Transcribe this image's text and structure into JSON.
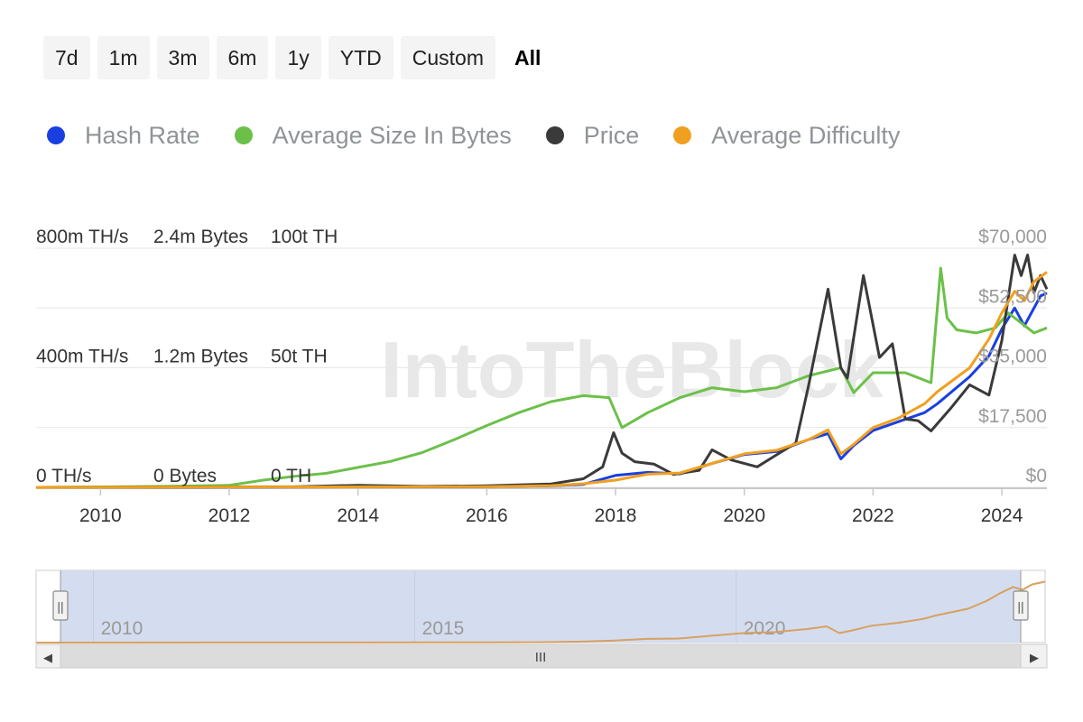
{
  "range_buttons": [
    {
      "label": "7d",
      "active": false
    },
    {
      "label": "1m",
      "active": false
    },
    {
      "label": "3m",
      "active": false
    },
    {
      "label": "6m",
      "active": false
    },
    {
      "label": "1y",
      "active": false
    },
    {
      "label": "YTD",
      "active": false
    },
    {
      "label": "Custom",
      "active": false
    },
    {
      "label": "All",
      "active": true
    }
  ],
  "legend": [
    {
      "label": "Hash Rate",
      "color": "#1a3fe0"
    },
    {
      "label": "Average Size In Bytes",
      "color": "#6cc04a"
    },
    {
      "label": "Price",
      "color": "#3a3a3a"
    },
    {
      "label": "Average Difficulty",
      "color": "#f0a020"
    }
  ],
  "watermark": "IntoTheBlock",
  "chart_data": {
    "type": "line",
    "xlim": [
      2009,
      2024.7
    ],
    "x_ticks": [
      "2010",
      "2012",
      "2014",
      "2016",
      "2018",
      "2020",
      "2022",
      "2024"
    ],
    "left_axes": [
      {
        "name": "Hash Rate",
        "unit": "TH/s",
        "ticks": [
          "0 TH/s",
          "400m TH/s",
          "800m TH/s"
        ],
        "ylim": [
          0,
          800
        ]
      },
      {
        "name": "Average Size In Bytes",
        "unit": "Bytes",
        "ticks": [
          "0 Bytes",
          "1.2m Bytes",
          "2.4m Bytes"
        ],
        "ylim": [
          0,
          2.4
        ]
      },
      {
        "name": "Average Difficulty",
        "unit": "TH",
        "ticks": [
          "0 TH",
          "50t TH",
          "100t TH"
        ],
        "ylim": [
          0,
          100
        ]
      }
    ],
    "right_axis": {
      "name": "Price",
      "ticks": [
        "$0",
        "$17,500",
        "$35,000",
        "$52,500",
        "$70,000"
      ],
      "ylim": [
        0,
        70000
      ]
    },
    "series": [
      {
        "name": "Hash Rate",
        "color": "#1a3fe0",
        "axis": "hash",
        "points": [
          [
            2009,
            0
          ],
          [
            2016,
            2
          ],
          [
            2017,
            5
          ],
          [
            2017.5,
            10
          ],
          [
            2018,
            40
          ],
          [
            2018.5,
            50
          ],
          [
            2019,
            45
          ],
          [
            2019.5,
            80
          ],
          [
            2020,
            110
          ],
          [
            2020.5,
            120
          ],
          [
            2021,
            160
          ],
          [
            2021.3,
            180
          ],
          [
            2021.5,
            95
          ],
          [
            2021.7,
            140
          ],
          [
            2022,
            190
          ],
          [
            2022.4,
            220
          ],
          [
            2022.8,
            250
          ],
          [
            2023,
            280
          ],
          [
            2023.5,
            370
          ],
          [
            2023.8,
            440
          ],
          [
            2024,
            530
          ],
          [
            2024.2,
            600
          ],
          [
            2024.35,
            540
          ],
          [
            2024.5,
            600
          ],
          [
            2024.6,
            640
          ],
          [
            2024.7,
            650
          ]
        ]
      },
      {
        "name": "Average Size In Bytes",
        "color": "#6cc04a",
        "axis": "size",
        "points": [
          [
            2009,
            0
          ],
          [
            2011,
            0.01
          ],
          [
            2012,
            0.02
          ],
          [
            2012.5,
            0.07
          ],
          [
            2013,
            0.11
          ],
          [
            2013.5,
            0.14
          ],
          [
            2014,
            0.2
          ],
          [
            2014.5,
            0.26
          ],
          [
            2015,
            0.35
          ],
          [
            2015.5,
            0.48
          ],
          [
            2016,
            0.62
          ],
          [
            2016.5,
            0.75
          ],
          [
            2017,
            0.86
          ],
          [
            2017.5,
            0.92
          ],
          [
            2017.9,
            0.9
          ],
          [
            2018.1,
            0.6
          ],
          [
            2018.5,
            0.75
          ],
          [
            2019,
            0.9
          ],
          [
            2019.5,
            1.0
          ],
          [
            2020,
            0.96
          ],
          [
            2020.5,
            1.0
          ],
          [
            2021,
            1.12
          ],
          [
            2021.5,
            1.2
          ],
          [
            2021.7,
            0.95
          ],
          [
            2022,
            1.15
          ],
          [
            2022.5,
            1.15
          ],
          [
            2022.9,
            1.05
          ],
          [
            2023.05,
            2.2
          ],
          [
            2023.15,
            1.7
          ],
          [
            2023.3,
            1.58
          ],
          [
            2023.6,
            1.55
          ],
          [
            2023.9,
            1.6
          ],
          [
            2024.1,
            1.75
          ],
          [
            2024.3,
            1.65
          ],
          [
            2024.5,
            1.55
          ],
          [
            2024.7,
            1.6
          ]
        ]
      },
      {
        "name": "Price",
        "color": "#3a3a3a",
        "axis": "price",
        "points": [
          [
            2009,
            0
          ],
          [
            2013,
            150
          ],
          [
            2014,
            600
          ],
          [
            2015,
            300
          ],
          [
            2016,
            450
          ],
          [
            2017,
            1000
          ],
          [
            2017.5,
            2500
          ],
          [
            2017.8,
            6000
          ],
          [
            2017.97,
            16000
          ],
          [
            2018.1,
            10000
          ],
          [
            2018.3,
            7500
          ],
          [
            2018.6,
            6800
          ],
          [
            2018.9,
            3800
          ],
          [
            2019.3,
            5000
          ],
          [
            2019.5,
            11000
          ],
          [
            2019.8,
            8000
          ],
          [
            2020.2,
            6000
          ],
          [
            2020.5,
            9500
          ],
          [
            2020.8,
            13000
          ],
          [
            2021.0,
            30000
          ],
          [
            2021.3,
            58000
          ],
          [
            2021.5,
            35000
          ],
          [
            2021.6,
            32000
          ],
          [
            2021.85,
            62000
          ],
          [
            2022.1,
            38000
          ],
          [
            2022.3,
            42000
          ],
          [
            2022.5,
            20000
          ],
          [
            2022.7,
            19500
          ],
          [
            2022.9,
            16500
          ],
          [
            2023.2,
            23000
          ],
          [
            2023.5,
            30000
          ],
          [
            2023.8,
            27000
          ],
          [
            2024.0,
            43000
          ],
          [
            2024.2,
            68000
          ],
          [
            2024.3,
            62000
          ],
          [
            2024.4,
            68000
          ],
          [
            2024.5,
            57000
          ],
          [
            2024.6,
            62000
          ],
          [
            2024.7,
            58000
          ]
        ]
      },
      {
        "name": "Average Difficulty",
        "color": "#f0a020",
        "axis": "difficulty",
        "points": [
          [
            2009,
            0
          ],
          [
            2016,
            0.3
          ],
          [
            2017,
            0.7
          ],
          [
            2017.5,
            1.5
          ],
          [
            2018,
            3
          ],
          [
            2018.5,
            5.5
          ],
          [
            2019,
            6
          ],
          [
            2019.5,
            10
          ],
          [
            2020,
            14
          ],
          [
            2020.5,
            15.5
          ],
          [
            2021,
            20
          ],
          [
            2021.3,
            24
          ],
          [
            2021.5,
            14
          ],
          [
            2021.7,
            18
          ],
          [
            2022,
            25
          ],
          [
            2022.4,
            29
          ],
          [
            2022.8,
            35
          ],
          [
            2023,
            40
          ],
          [
            2023.5,
            50
          ],
          [
            2023.8,
            62
          ],
          [
            2024,
            73
          ],
          [
            2024.2,
            82
          ],
          [
            2024.35,
            78
          ],
          [
            2024.5,
            86
          ],
          [
            2024.7,
            90
          ]
        ]
      }
    ]
  },
  "navigator": {
    "ticks": [
      "2010",
      "2015",
      "2020"
    ],
    "scroll_grip": "III",
    "left_arrow": "◀",
    "right_arrow": "▶",
    "handle_grip": "||"
  }
}
